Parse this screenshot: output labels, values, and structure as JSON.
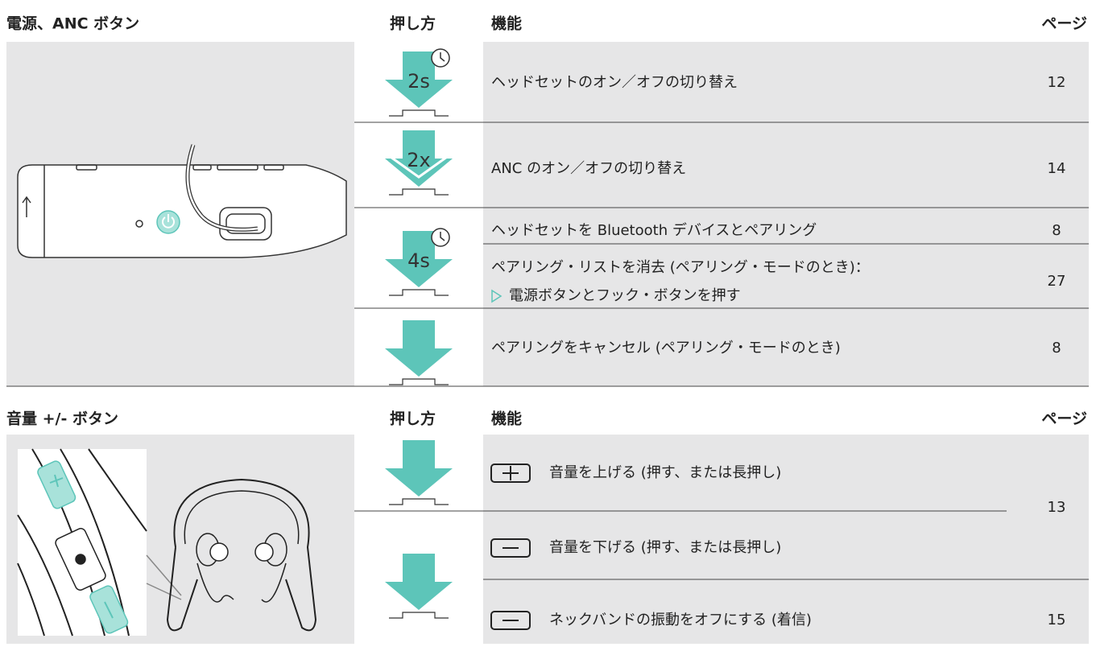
{
  "sections": [
    {
      "title": "電源、ANC ボタン",
      "columns": [
        "押し方",
        "機能",
        "ページ"
      ],
      "rows": [
        {
          "press": "2s",
          "functions": [
            {
              "text": "ヘッドセットのオン／オフの切り替え",
              "page": 12
            }
          ]
        },
        {
          "press": "2x",
          "functions": [
            {
              "text": "ANC のオン／オフの切り替え",
              "page": 14
            }
          ]
        },
        {
          "press": "4s",
          "functions": [
            {
              "text": "ヘッドセットを Bluetooth デバイスとペアリング",
              "page": 8
            },
            {
              "text": "ペアリング・リストを消去 (ペアリング・モードのとき)：",
              "step": "電源ボタンとフック・ボタンを押す",
              "page": 27
            }
          ]
        },
        {
          "functions": [
            {
              "text": "ペアリングをキャンセル (ペアリング・モードのとき)",
              "page": 8
            }
          ]
        }
      ]
    },
    {
      "title": "音量 +/- ボタン",
      "columns": [
        "押し方",
        "機能",
        "ページ"
      ],
      "rows": [
        {
          "text": "音量を上げる (押す、または長押し)",
          "page": 13
        },
        {
          "text": "音量を下げる (押す、または長押し)"
        },
        {
          "text": "ネックバンドの振動をオフにする (着信)",
          "page": 15
        }
      ]
    }
  ]
}
